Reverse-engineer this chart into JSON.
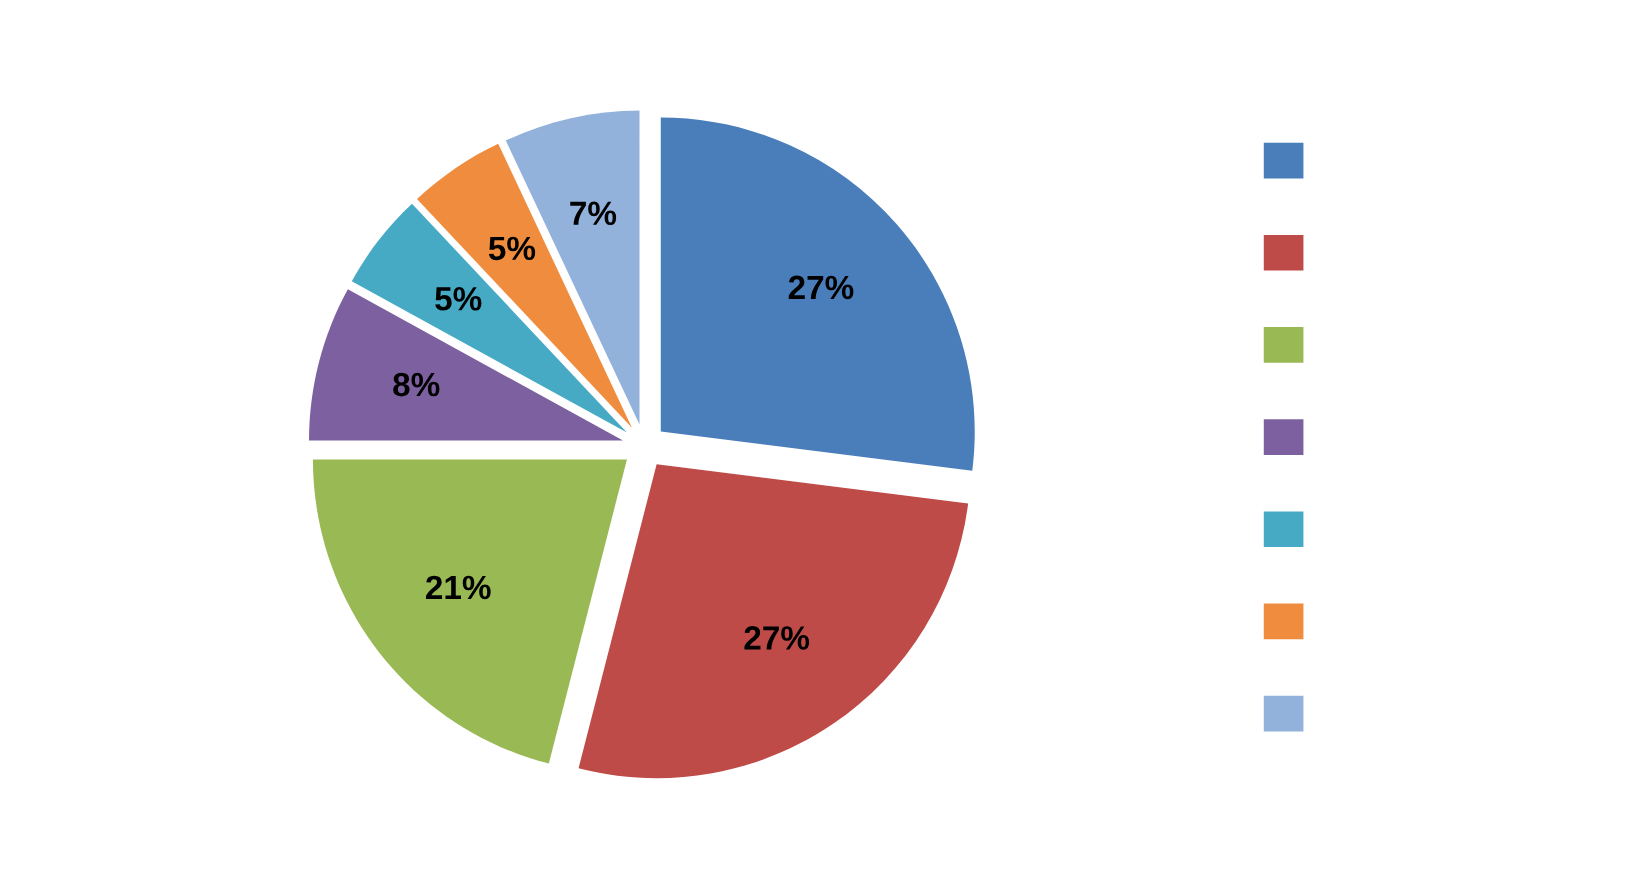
{
  "chart_data": {
    "type": "pie",
    "categories": [
      null,
      null,
      null,
      null,
      null,
      null,
      null
    ],
    "values": [
      27,
      27,
      21,
      8,
      5,
      5,
      7
    ],
    "value_labels": [
      "27%",
      "27%",
      "21%",
      "8%",
      "5%",
      "5%",
      "7%"
    ],
    "colors": [
      "#4a7ebb",
      "#be4b48",
      "#98b954",
      "#7d60a0",
      "#46aac5",
      "#f08c3d",
      "#92b2dc"
    ]
  }
}
